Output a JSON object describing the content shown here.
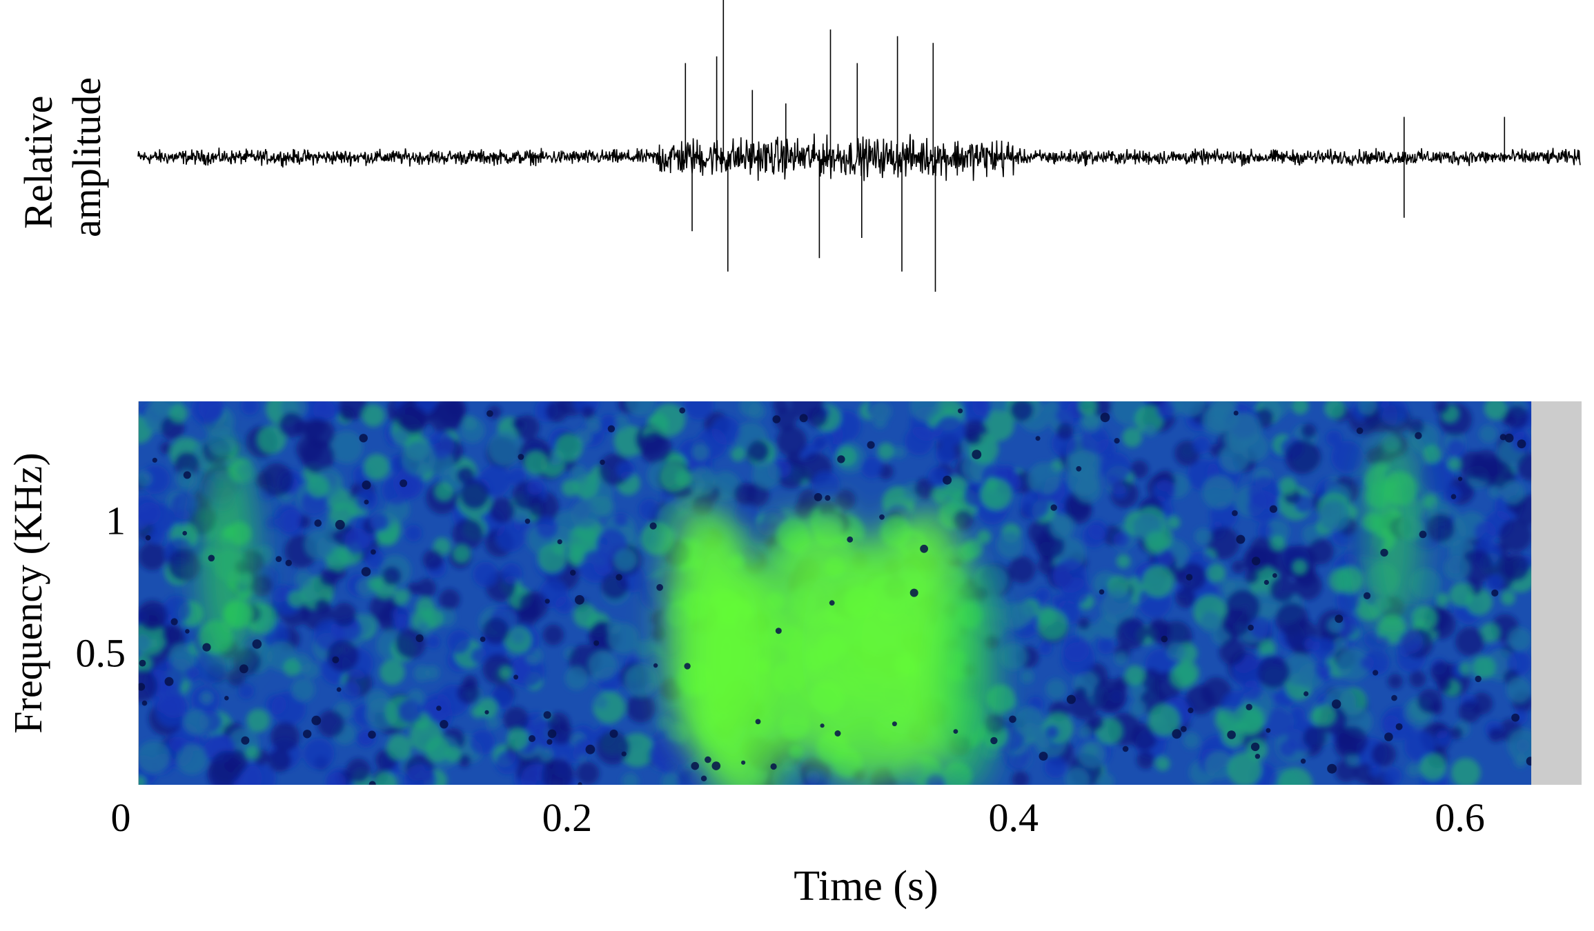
{
  "chart_data": [
    {
      "type": "line",
      "panel": "waveform",
      "ylabel_lines": [
        "Relative",
        "amplitude"
      ],
      "x_range": [
        0,
        0.64
      ],
      "noise_baseline": 0.05,
      "peaks": [
        {
          "t": 0.253,
          "a": 0.7
        },
        {
          "t": 0.256,
          "a": -0.55
        },
        {
          "t": 0.267,
          "a": 0.75
        },
        {
          "t": 0.27,
          "a": 1.2
        },
        {
          "t": 0.272,
          "a": -0.85
        },
        {
          "t": 0.283,
          "a": 0.5
        },
        {
          "t": 0.298,
          "a": 0.4
        },
        {
          "t": 0.313,
          "a": -0.75
        },
        {
          "t": 0.318,
          "a": 0.95
        },
        {
          "t": 0.33,
          "a": 0.7
        },
        {
          "t": 0.332,
          "a": -0.6
        },
        {
          "t": 0.348,
          "a": 0.9
        },
        {
          "t": 0.35,
          "a": -0.85
        },
        {
          "t": 0.364,
          "a": 0.85
        },
        {
          "t": 0.365,
          "a": -1.0
        },
        {
          "t": 0.575,
          "a": -0.45
        },
        {
          "t": 0.575,
          "a": 0.3
        },
        {
          "t": 0.62,
          "a": 0.3
        }
      ]
    },
    {
      "type": "heatmap",
      "panel": "spectrogram",
      "xlabel": "Time (s)",
      "ylabel": "Frequency (KHz)",
      "x_range": [
        0,
        0.64
      ],
      "y_range": [
        0,
        1.45
      ],
      "x_ticks": [
        "0",
        "0.2",
        "0.4",
        "0.6"
      ],
      "x_tick_values": [
        0,
        0.2,
        0.4,
        0.6
      ],
      "y_ticks": [
        "0.5",
        "1"
      ],
      "y_tick_values": [
        0.5,
        1.0
      ],
      "data_range": [
        0.008,
        0.632
      ],
      "colormap": [
        "#0a1a80",
        "#1535b8",
        "#1c6fa0",
        "#1fa07a",
        "#2ed84a",
        "#66ff33"
      ],
      "hotspots": [
        {
          "t": 0.258,
          "f": 0.6,
          "intensity": 0.85
        },
        {
          "t": 0.27,
          "f": 0.5,
          "intensity": 1.0
        },
        {
          "t": 0.282,
          "f": 0.35,
          "intensity": 0.85
        },
        {
          "t": 0.3,
          "f": 0.55,
          "intensity": 0.8
        },
        {
          "t": 0.318,
          "f": 0.55,
          "intensity": 0.95
        },
        {
          "t": 0.333,
          "f": 0.45,
          "intensity": 0.85
        },
        {
          "t": 0.35,
          "f": 0.52,
          "intensity": 0.95
        },
        {
          "t": 0.365,
          "f": 0.55,
          "intensity": 0.9
        },
        {
          "t": 0.38,
          "f": 0.4,
          "intensity": 0.6
        },
        {
          "t": 0.048,
          "f": 0.85,
          "intensity": 0.55
        },
        {
          "t": 0.57,
          "f": 0.95,
          "intensity": 0.45
        }
      ]
    }
  ]
}
